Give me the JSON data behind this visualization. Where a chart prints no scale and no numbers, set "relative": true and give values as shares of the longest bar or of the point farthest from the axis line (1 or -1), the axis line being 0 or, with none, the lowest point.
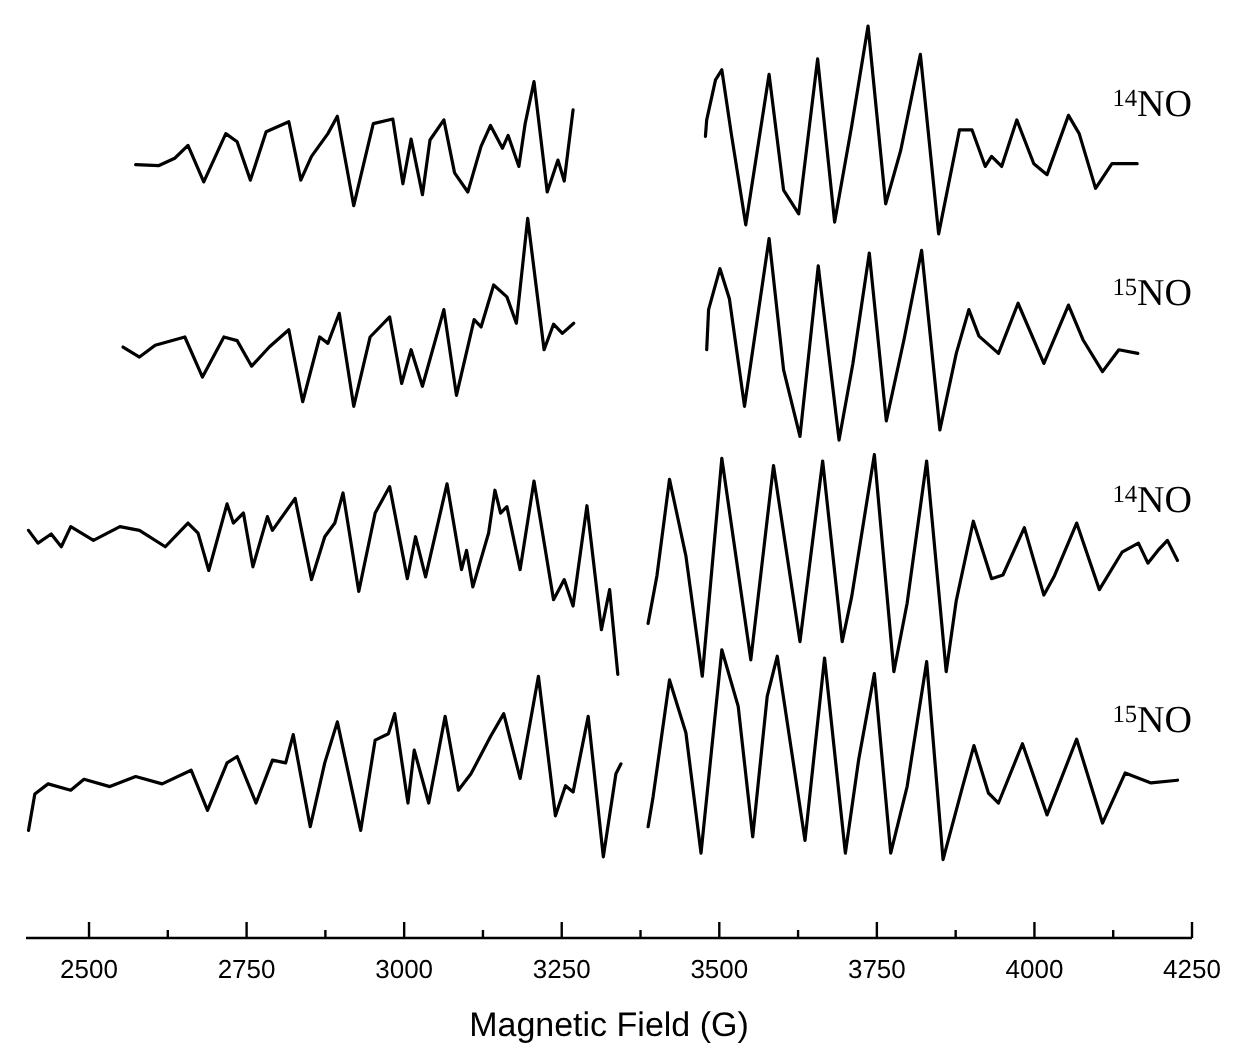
{
  "chart_data": {
    "type": "line",
    "relative": true,
    "xlabel": "Magnetic Field (G)",
    "xlim": [
      2400,
      4250
    ],
    "xticks": [
      2500,
      {
        "value": 2625,
        "label": null
      },
      2750,
      {
        "value": 2875,
        "label": null
      },
      3000,
      {
        "value": 3125,
        "label": null
      },
      3250,
      {
        "value": 3375,
        "label": null
      },
      3500,
      {
        "value": 3625,
        "label": null
      },
      3750,
      {
        "value": 3875,
        "label": null
      },
      4000,
      {
        "value": 4125,
        "label": null
      },
      4250
    ],
    "series": [
      {
        "name": "$^{14}$NO",
        "color": "#000000",
        "x": [
          2574,
          2611,
          2636,
          2657,
          2682,
          2717,
          2735,
          2756,
          2781,
          2817,
          2836,
          2853,
          2879,
          2894,
          2920,
          2951,
          2982,
          2998,
          3011,
          3029,
          3041,
          3063,
          3080,
          3101,
          3122,
          3137,
          3156,
          3165,
          3182,
          3192,
          3206,
          3227,
          3244,
          3254,
          3268,
          3320,
          3478,
          3480,
          3494,
          3504,
          3519,
          3542,
          3579,
          3602,
          3626,
          3656,
          3683,
          3710,
          3736,
          3764,
          3788,
          3819,
          3848,
          3881,
          3901,
          3922,
          3932,
          3948,
          3972,
          3999,
          4020,
          4054,
          4071,
          4097,
          4123,
          4163
        ],
        "values": [
          0.848,
          0.847,
          0.855,
          0.869,
          0.829,
          0.882,
          0.873,
          0.831,
          0.884,
          0.895,
          0.831,
          0.857,
          0.882,
          0.901,
          0.803,
          0.893,
          0.898,
          0.827,
          0.876,
          0.815,
          0.875,
          0.897,
          0.839,
          0.818,
          0.868,
          0.891,
          0.866,
          0.88,
          0.846,
          0.893,
          0.939,
          0.818,
          0.853,
          0.83,
          0.908,
          null,
          0.879,
          0.897,
          0.941,
          0.952,
          0.882,
          0.782,
          0.947,
          0.82,
          0.794,
          0.964,
          0.785,
          0.89,
          1,
          0.805,
          0.864,
          0.969,
          0.772,
          0.886,
          0.886,
          0.846,
          0.857,
          0.846,
          0.897,
          0.849,
          0.837,
          0.902,
          0.882,
          0.822,
          0.849,
          0.849
        ]
      },
      {
        "name": "$^{15}$NO",
        "color": "#000000",
        "x": [
          2554,
          2580,
          2605,
          2652,
          2680,
          2714,
          2735,
          2758,
          2786,
          2817,
          2839,
          2866,
          2879,
          2897,
          2920,
          2946,
          2977,
          2996,
          3011,
          3029,
          3063,
          3083,
          3111,
          3122,
          3142,
          3163,
          3178,
          3196,
          3222,
          3237,
          3251,
          3269,
          3320,
          3480,
          3483,
          3501,
          3516,
          3540,
          3579,
          3602,
          3628,
          3657,
          3690,
          3712,
          3738,
          3765,
          3793,
          3821,
          3850,
          3876,
          3896,
          3912,
          3943,
          3974,
          4015,
          4054,
          4077,
          4108,
          4134,
          4164
        ],
        "values": [
          0.648,
          0.637,
          0.65,
          0.659,
          0.615,
          0.659,
          0.655,
          0.627,
          0.648,
          0.667,
          0.588,
          0.659,
          0.652,
          0.685,
          0.583,
          0.659,
          0.681,
          0.608,
          0.645,
          0.605,
          0.689,
          0.595,
          0.678,
          0.67,
          0.716,
          0.703,
          0.674,
          0.789,
          0.645,
          0.673,
          0.663,
          0.674,
          null,
          0.645,
          0.689,
          0.734,
          0.701,
          0.583,
          0.767,
          0.623,
          0.55,
          0.737,
          0.546,
          0.63,
          0.751,
          0.567,
          0.656,
          0.754,
          0.557,
          0.641,
          0.689,
          0.66,
          0.641,
          0.696,
          0.63,
          0.694,
          0.656,
          0.621,
          0.645,
          0.641
        ]
      },
      {
        "name": "$^{14}$NO",
        "color": "#000000",
        "x": [
          2404,
          2419,
          2440,
          2456,
          2471,
          2507,
          2549,
          2580,
          2621,
          2657,
          2673,
          2690,
          2719,
          2729,
          2745,
          2760,
          2783,
          2791,
          2827,
          2853,
          2874,
          2890,
          2903,
          2928,
          2954,
          2977,
          3005,
          3018,
          3034,
          3068,
          3091,
          3099,
          3109,
          3134,
          3144,
          3153,
          3163,
          3184,
          3206,
          3237,
          3254,
          3268,
          3290,
          3313,
          3326,
          3339,
          3365,
          3387,
          3401,
          3421,
          3447,
          3473,
          3504,
          3550,
          3586,
          3628,
          3664,
          3695,
          3710,
          3746,
          3777,
          3798,
          3829,
          3860,
          3876,
          3903,
          3932,
          3950,
          3984,
          4015,
          4031,
          4067,
          4103,
          4139,
          4165,
          4180,
          4196,
          4211,
          4227
        ],
        "values": [
          0.447,
          0.433,
          0.443,
          0.429,
          0.451,
          0.436,
          0.451,
          0.447,
          0.429,
          0.455,
          0.444,
          0.403,
          0.476,
          0.455,
          0.466,
          0.407,
          0.462,
          0.447,
          0.482,
          0.393,
          0.44,
          0.455,
          0.488,
          0.38,
          0.466,
          0.495,
          0.394,
          0.44,
          0.396,
          0.498,
          0.404,
          0.425,
          0.385,
          0.444,
          0.491,
          0.466,
          0.473,
          0.404,
          0.501,
          0.371,
          0.393,
          0.364,
          0.474,
          0.338,
          0.382,
          0.289,
          null,
          0.345,
          0.397,
          0.503,
          0.419,
          0.287,
          0.526,
          0.305,
          0.518,
          0.325,
          0.523,
          0.325,
          0.374,
          0.53,
          0.292,
          0.367,
          0.523,
          0.292,
          0.37,
          0.457,
          0.394,
          0.398,
          0.45,
          0.376,
          0.396,
          0.455,
          0.382,
          0.423,
          0.433,
          0.411,
          0.425,
          0.436,
          0.414
        ]
      },
      {
        "name": "$^{15}$NO",
        "color": "#000000",
        "x": [
          2404,
          2414,
          2435,
          2471,
          2492,
          2533,
          2574,
          2616,
          2662,
          2688,
          2719,
          2735,
          2765,
          2791,
          2812,
          2824,
          2851,
          2874,
          2894,
          2931,
          2954,
          2975,
          2985,
          3006,
          3016,
          3039,
          3065,
          3086,
          3106,
          3137,
          3158,
          3184,
          3213,
          3240,
          3256,
          3268,
          3292,
          3316,
          3336,
          3344,
          3365,
          3387,
          3395,
          3421,
          3447,
          3471,
          3504,
          3530,
          3553,
          3576,
          3592,
          3636,
          3667,
          3700,
          3721,
          3746,
          3772,
          3798,
          3829,
          3855,
          3886,
          3904,
          3927,
          3943,
          3981,
          4020,
          4067,
          4108,
          4144,
          4185,
          4227
        ],
        "values": [
          0.118,
          0.158,
          0.169,
          0.162,
          0.174,
          0.166,
          0.177,
          0.169,
          0.184,
          0.14,
          0.192,
          0.199,
          0.148,
          0.195,
          0.192,
          0.223,
          0.122,
          0.192,
          0.237,
          0.118,
          0.217,
          0.224,
          0.246,
          0.148,
          0.206,
          0.148,
          0.243,
          0.162,
          0.18,
          0.221,
          0.246,
          0.175,
          0.287,
          0.134,
          0.167,
          0.16,
          0.243,
          0.089,
          0.18,
          0.191,
          null,
          0.122,
          0.155,
          0.283,
          0.225,
          0.093,
          0.316,
          0.254,
          0.111,
          0.265,
          0.309,
          0.107,
          0.307,
          0.093,
          0.195,
          0.29,
          0.093,
          0.166,
          0.303,
          0.086,
          0.166,
          0.211,
          0.159,
          0.148,
          0.213,
          0.135,
          0.218,
          0.126,
          0.181,
          0.17,
          0.173
        ]
      }
    ]
  }
}
